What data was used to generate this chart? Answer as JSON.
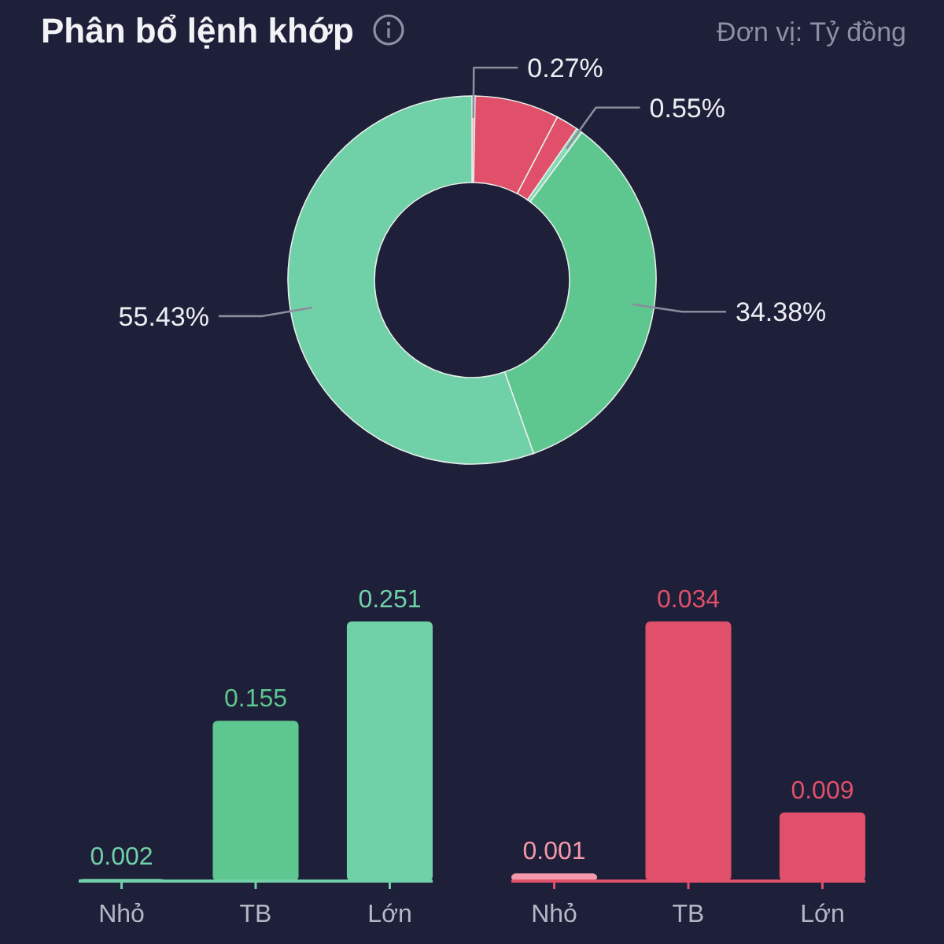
{
  "chart_data": [
    {
      "type": "donut",
      "title": "Phân bổ lệnh khớp",
      "annotations": [
        "Đơn vị: Tỷ đồng"
      ],
      "categories": [
        null,
        null,
        null,
        null,
        null,
        null
      ],
      "values": [
        0.27,
        7.41,
        1.96,
        0.55,
        34.38,
        55.43
      ],
      "colors": [
        "#f29aab",
        "#e0506a",
        "#e0506a",
        "#86dab6",
        "#5ec68f",
        "#70d0a7"
      ],
      "value_labels": [
        "0.27%",
        null,
        null,
        "0.55%",
        "34.38%",
        "55.43%"
      ]
    },
    {
      "type": "bar",
      "categories": [
        "Nhỏ",
        "TB",
        "Lớn"
      ],
      "values": [
        0.002,
        0.155,
        0.251
      ],
      "colors": [
        "#70d0a7",
        "#5ec68f",
        "#70d0a7"
      ],
      "data_labels": true,
      "tick_labels": "x"
    },
    {
      "type": "bar",
      "categories": [
        "Nhỏ",
        "TB",
        "Lớn"
      ],
      "values": [
        0.001,
        0.034,
        0.009
      ],
      "colors": [
        "#f29aab",
        "#e0506a",
        "#e0506a"
      ],
      "data_labels": true,
      "tick_labels": "x"
    }
  ]
}
